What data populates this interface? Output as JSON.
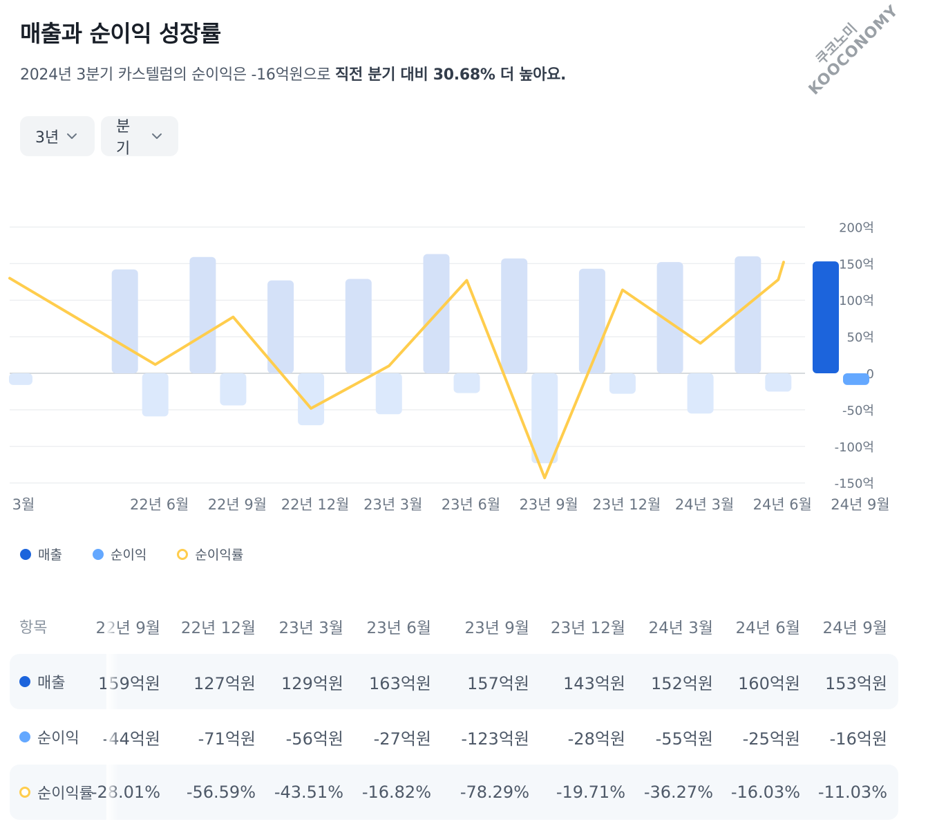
{
  "header": {
    "title": "매출과 순이익 성장률",
    "subtitle_plain": "2024년 3분기 카스텔럼의 순이익은 -16억원으로 ",
    "subtitle_bold": "직전 분기 대비 30.68% 더 높아요."
  },
  "watermark": {
    "line1": "쿠코노미",
    "line2": "KOOCONOMY"
  },
  "filters": {
    "period": "3년",
    "unit": "분기"
  },
  "legend": {
    "revenue": "매출",
    "net_income": "순이익",
    "margin": "순이익률"
  },
  "colors": {
    "revenue_light": "#d4e1f8",
    "revenue_highlight": "#1c64dc",
    "net_income_light": "#dce9fc",
    "net_income_highlight": "#64a8ff",
    "margin_line": "#ffcd4d",
    "grid": "#e5e8eb"
  },
  "chart_data": {
    "type": "bar",
    "title": "매출과 순이익 성장률",
    "categories": [
      "3월",
      "22년 6월",
      "22년 9월",
      "22년 12월",
      "23년 3월",
      "23년 6월",
      "23년 9월",
      "23년 12월",
      "24년 3월",
      "24년 6월",
      "24년 9월"
    ],
    "series": [
      {
        "name": "매출",
        "type": "bar",
        "values": [
          null,
          142,
          159,
          127,
          129,
          163,
          157,
          143,
          152,
          160,
          153
        ]
      },
      {
        "name": "순이익",
        "type": "bar",
        "values": [
          -16,
          -59,
          -44,
          -71,
          -56,
          -27,
          -123,
          -28,
          -55,
          -25,
          -16
        ]
      },
      {
        "name": "순이익률",
        "type": "line",
        "values": [
          130,
          12,
          77,
          -48,
          10,
          127,
          -143,
          114,
          41,
          128,
          152
        ]
      }
    ],
    "yticks": [
      "200억",
      "150억",
      "100억",
      "50억",
      "0",
      "-50억",
      "-100억",
      "-150억"
    ],
    "ytick_values": [
      200,
      150,
      100,
      50,
      0,
      -50,
      -100,
      -150
    ],
    "ylim": [
      -150,
      200
    ],
    "xlabel": "",
    "ylabel": "",
    "highlight_index": 10
  },
  "table": {
    "header_label": "항목",
    "columns": [
      "22년 9월",
      "22년 12월",
      "23년 3월",
      "23년 6월",
      "23년 9월",
      "23년 12월",
      "24년 3월",
      "24년 6월",
      "24년 9월"
    ],
    "rows": [
      {
        "label": "매출",
        "values": [
          "159억원",
          "127억원",
          "129억원",
          "163억원",
          "157억원",
          "143억원",
          "152억원",
          "160억원",
          "153억원"
        ]
      },
      {
        "label": "순이익",
        "values": [
          "-44억원",
          "-71억원",
          "-56억원",
          "-27억원",
          "-123억원",
          "-28억원",
          "-55억원",
          "-25억원",
          "-16억원"
        ]
      },
      {
        "label": "순이익률",
        "values": [
          "-28.01%",
          "-56.59%",
          "-43.51%",
          "-16.82%",
          "-78.29%",
          "-19.71%",
          "-36.27%",
          "-16.03%",
          "-11.03%"
        ]
      }
    ]
  }
}
